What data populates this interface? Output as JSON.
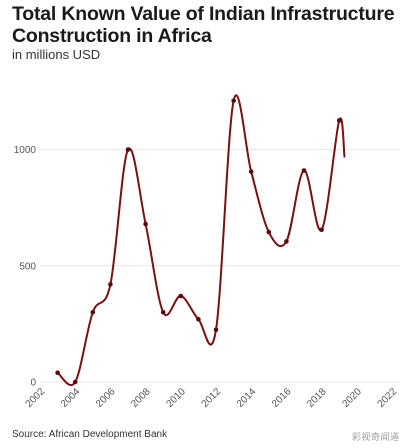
{
  "title": "Total Known Value of Indian Infrastructure Construction in Africa",
  "subtitle": "in millions USD",
  "source": "Source: African Development Bank",
  "watermark": "彩视奇闻道",
  "colors": {
    "line": "#7a1010",
    "marker": "#5a0c0c",
    "grid": "#e6e6e6",
    "axis_text": "#555555"
  },
  "chart_data": {
    "type": "line",
    "title": "Total Known Value of Indian Infrastructure Construction in Africa",
    "subtitle": "in millions USD",
    "xlabel": "",
    "ylabel": "",
    "x": [
      2003,
      2004,
      2005,
      2006,
      2007,
      2008,
      2009,
      2010,
      2011,
      2012,
      2013,
      2014,
      2015,
      2016,
      2017,
      2018,
      2019,
      2019.3
    ],
    "y": [
      40,
      0,
      300,
      420,
      1000,
      680,
      300,
      370,
      270,
      225,
      1210,
      905,
      645,
      605,
      910,
      655,
      1125,
      970
    ],
    "xlim": [
      2002,
      2022
    ],
    "ylim": [
      0,
      1300
    ],
    "x_ticks": [
      "2002",
      "2004",
      "2006",
      "2008",
      "2010",
      "2012",
      "2014",
      "2016",
      "2018",
      "2020",
      "2022"
    ],
    "y_ticks": [
      "0",
      "500",
      "1000"
    ],
    "grid": "horizontal",
    "markers": true,
    "legend": "none"
  }
}
